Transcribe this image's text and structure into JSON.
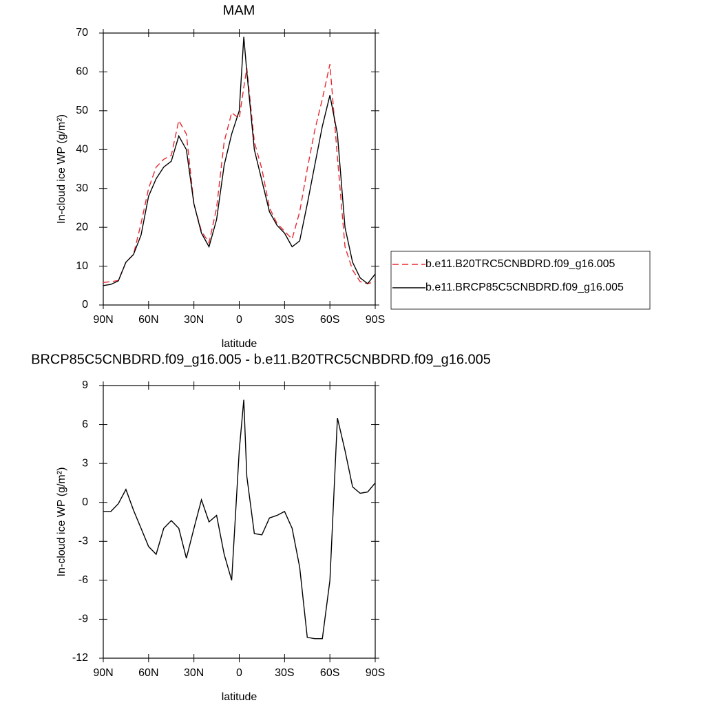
{
  "chart_data": [
    {
      "type": "line",
      "title": "MAM",
      "xlabel": "latitude",
      "ylabel": "In-cloud ice WP (g/m²)",
      "x": [
        90,
        85,
        80,
        75,
        70,
        65,
        60,
        55,
        50,
        45,
        40,
        35,
        30,
        25,
        20,
        15,
        10,
        5,
        0,
        -3,
        -5,
        -10,
        -15,
        -20,
        -25,
        -30,
        -35,
        -40,
        -45,
        -50,
        -55,
        -60,
        -65,
        -70,
        -75,
        -80,
        -85,
        -90
      ],
      "xlim": [
        90,
        -90
      ],
      "xticks": [
        {
          "value": 90,
          "label": "90N"
        },
        {
          "value": 60,
          "label": "60N"
        },
        {
          "value": 30,
          "label": "30N"
        },
        0,
        {
          "value": -30,
          "label": "30S"
        },
        {
          "value": -60,
          "label": "60S"
        },
        {
          "value": -90,
          "label": "90S"
        }
      ],
      "ylim": [
        0,
        70
      ],
      "yticks": [
        0,
        10,
        20,
        30,
        40,
        50,
        60,
        70
      ],
      "legend": "right",
      "series": [
        {
          "name": "b.e11.B20TRC5CNBDRD.f09_g16.005",
          "color": "#e8282e",
          "dashed": true,
          "values": [
            5.8,
            6,
            6.3,
            11,
            13,
            21,
            30,
            35.5,
            37.5,
            38.5,
            47.5,
            44,
            26,
            19,
            16,
            25,
            42,
            49.5,
            48,
            56,
            61,
            42,
            35,
            25,
            21,
            19,
            17,
            24,
            35,
            45,
            53,
            62,
            38,
            15,
            9,
            6,
            5.5,
            6
          ]
        },
        {
          "name": "b.e11.BRCP85C5CNBDRD.f09_g16.005",
          "color": "#000000",
          "dashed": false,
          "values": [
            5,
            5.3,
            6.2,
            11,
            13,
            18,
            28,
            32.5,
            35.5,
            37,
            43.5,
            40,
            26,
            18.5,
            15,
            22,
            36,
            44,
            50,
            69,
            60,
            40,
            32,
            24,
            20.5,
            18.5,
            15,
            16.5,
            26,
            36,
            46,
            54,
            44,
            20,
            11,
            7,
            5.5,
            8
          ]
        }
      ]
    },
    {
      "type": "line",
      "title": "BRCP85C5CNBDRD.f09_g16.005 - b.e11.B20TRC5CNBDRD.f09_g16.005",
      "xlabel": "latitude",
      "ylabel": "In-cloud ice WP (g/m²)",
      "x": [
        90,
        85,
        80,
        75,
        70,
        65,
        60,
        55,
        50,
        45,
        40,
        35,
        30,
        25,
        20,
        15,
        10,
        5,
        0,
        -3,
        -5,
        -10,
        -15,
        -20,
        -25,
        -30,
        -35,
        -40,
        -45,
        -50,
        -55,
        -60,
        -65,
        -70,
        -75,
        -80,
        -85,
        -90
      ],
      "xlim": [
        90,
        -90
      ],
      "xticks": [
        {
          "value": 90,
          "label": "90N"
        },
        {
          "value": 60,
          "label": "60N"
        },
        {
          "value": 30,
          "label": "30N"
        },
        0,
        {
          "value": -30,
          "label": "30S"
        },
        {
          "value": -60,
          "label": "60S"
        },
        {
          "value": -90,
          "label": "90S"
        }
      ],
      "ylim": [
        -12,
        9
      ],
      "yticks": [
        -12,
        -9,
        -6,
        -3,
        0,
        3,
        6,
        9
      ],
      "series": [
        {
          "color": "#000000",
          "dashed": false,
          "values": [
            -0.7,
            -0.7,
            -0.1,
            1.0,
            -0.6,
            -2.0,
            -3.4,
            -4.0,
            -2.0,
            -1.4,
            -2.0,
            -4.3,
            -2.0,
            0.2,
            -1.5,
            -1.0,
            -4,
            -6,
            4,
            7.9,
            2,
            -2.4,
            -2.5,
            -1.2,
            -1.0,
            -0.7,
            -2.0,
            -5,
            -10.4,
            -10.5,
            -10.5,
            -6,
            6.5,
            4,
            1.2,
            0.7,
            0.8,
            1.5
          ]
        }
      ]
    }
  ]
}
